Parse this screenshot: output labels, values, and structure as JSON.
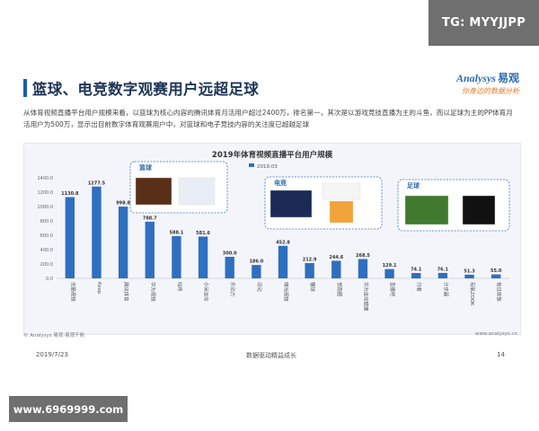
{
  "watermark_top": "TG: MYYJJPP",
  "watermark_bottom": "www.6969999.com",
  "slide": {
    "title": "篮球、电竞数字观赛用户远超足球",
    "logo": {
      "brand_en": "Analysys",
      "brand_cn": "易观",
      "slogan": "你身边的数据分析"
    },
    "description": "从体育视频直播平台用户规模来看，以篮球为核心内容的腾讯体育月活用户超过2400万，排名第一，其次是以游戏竞技直播为主的斗鱼，而以足球为主的PP体育月活用户为500万，显示出目前数字体育观赛用户中，对篮球和电子竞技内容的关注度已超越足球",
    "footer_source": "© Analysys 易观·易观千帆",
    "footer_url": "www.analysys.cn",
    "footer_date": "2019/7/23",
    "footer_tagline": "数据驱动精益成长",
    "footer_page": "14"
  },
  "callouts": [
    {
      "label": "篮球",
      "color": "#2b6cb0"
    },
    {
      "label": "电竞",
      "color": "#2b6cb0"
    },
    {
      "label": "足球",
      "color": "#2b6cb0"
    }
  ],
  "chart_data": {
    "type": "bar",
    "title": "2019年体育视频直播平台用户规模",
    "legend": "2019.03",
    "bar_color": "#2f6fc0",
    "categories": [
      "优酷视频",
      "Keep",
      "腾讯体育",
      "华为视频",
      "咕咚",
      "小米运动",
      "乐动力",
      "动动",
      "咪咕视频",
      "懂球",
      "悦跑圈",
      "华为运动健康",
      "直播吧",
      "行者",
      "计步器",
      "有氧ZOOK",
      "每日瑜伽"
    ],
    "values": [
      1130.8,
      1277.5,
      998.8,
      788.7,
      588.1,
      581.6,
      300.0,
      186.0,
      452.8,
      212.9,
      244.6,
      268.5,
      129.1,
      74.1,
      76.1,
      51.3,
      55.0
    ],
    "labels": [
      "1130.8",
      "1277.5",
      "998.8",
      "788.7",
      "588.1",
      "581.6",
      "300.0",
      "186.0",
      "452.8",
      "212.9",
      "244.6",
      "268.5",
      "129.1",
      "74.1",
      "76.1",
      "51.3",
      "55.0"
    ],
    "ylim": [
      0,
      1400
    ],
    "yticks": [
      "0.0",
      "200.0",
      "400.0",
      "600.0",
      "800.0",
      "1000.0",
      "1200.0",
      "1400.0"
    ],
    "grid": false
  }
}
